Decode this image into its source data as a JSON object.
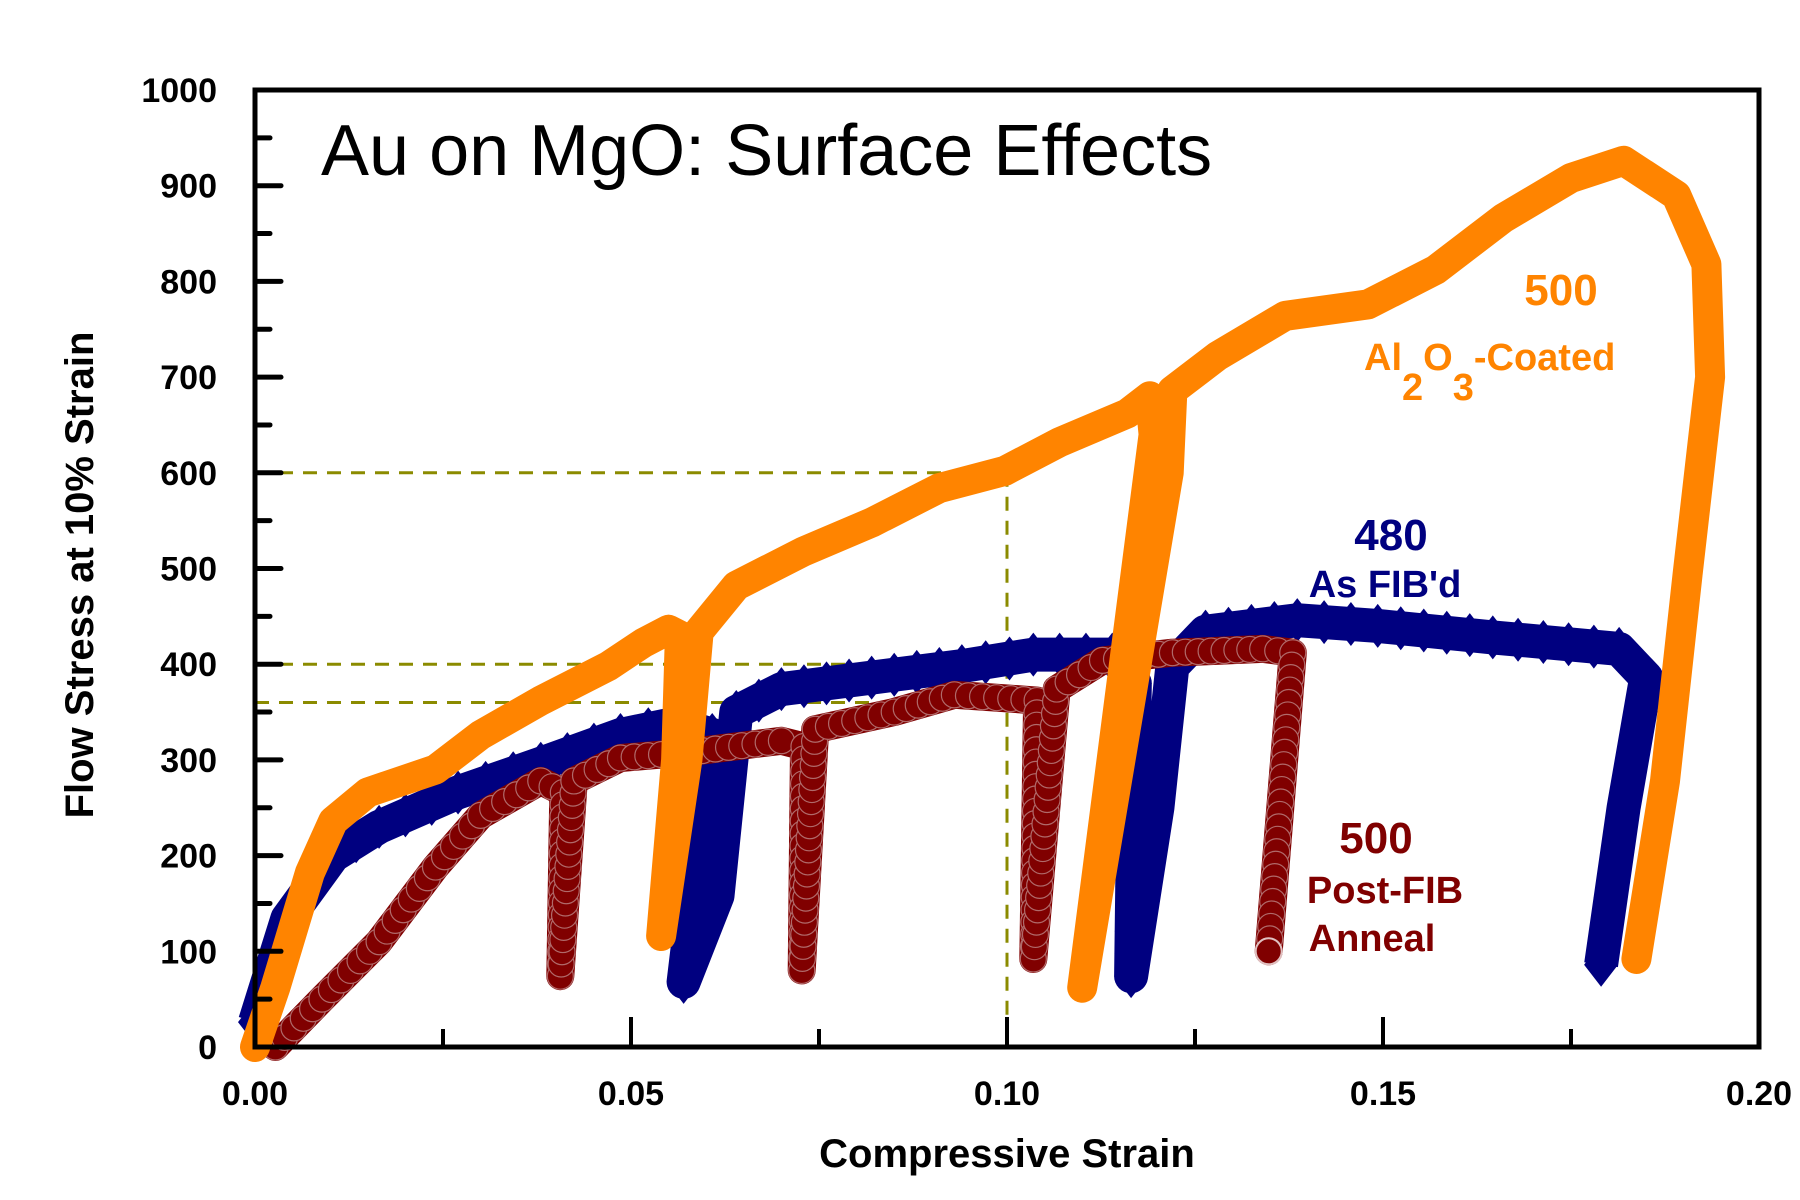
{
  "chart_data": {
    "type": "line",
    "title": "Au on MgO: Surface Effects",
    "xlabel": "Compressive Strain",
    "ylabel": "Flow Stress at 10% Strain",
    "xlim": [
      0.0,
      0.2
    ],
    "ylim": [
      0,
      1000
    ],
    "x_ticks": [
      "0.00",
      "0.05",
      "0.10",
      "0.15",
      "0.20"
    ],
    "x_tick_values": [
      0.0,
      0.05,
      0.1,
      0.15,
      0.2
    ],
    "x_minor_step": 0.025,
    "y_ticks": [
      "0",
      "100",
      "200",
      "300",
      "400",
      "500",
      "600",
      "700",
      "800",
      "900",
      "1000"
    ],
    "y_tick_values": [
      0,
      100,
      200,
      300,
      400,
      500,
      600,
      700,
      800,
      900,
      1000
    ],
    "y_minor_step": 50,
    "grid": false,
    "legend": "none",
    "reference_lines": {
      "color": "#8b8b00",
      "x_at": 0.1,
      "y_values": [
        600,
        400,
        360
      ]
    },
    "series": [
      {
        "name": "Al2O3-Coated",
        "color": "#ff8400",
        "marker": "circle",
        "annotation": {
          "value": "500",
          "line1": "Al",
          "sub1": "2",
          "mid": "O",
          "sub2": "3",
          "tail": "-Coated",
          "position": "upper-right"
        },
        "x": [
          0.0,
          0.0027,
          0.0073,
          0.0104,
          0.015,
          0.024,
          0.03,
          0.038,
          0.047,
          0.0516,
          0.055,
          0.0565,
          0.056,
          0.054,
          0.0575,
          0.059,
          0.064,
          0.073,
          0.082,
          0.091,
          0.0997,
          0.107,
          0.116,
          0.119,
          0.1195,
          0.11,
          0.1215,
          0.122,
          0.128,
          0.137,
          0.148,
          0.157,
          0.166,
          0.175,
          0.182,
          0.189,
          0.193,
          0.1935,
          0.1905,
          0.1875,
          0.1837
        ],
        "y": [
          0,
          62,
          182,
          236,
          266,
          290,
          326,
          362,
          398,
          422,
          436,
          430,
          300,
          116,
          300,
          434,
          482,
          518,
          548,
          584,
          602,
          632,
          662,
          680,
          640,
          62,
          600,
          686,
          722,
          764,
          776,
          812,
          866,
          908,
          926,
          890,
          818,
          700,
          494,
          278,
          92
        ]
      },
      {
        "name": "As FIB'd",
        "color": "#000080",
        "marker": "diamond",
        "annotation": {
          "value": "480",
          "label": "As FIB'd",
          "position": "center-right"
        },
        "x": [
          0.0,
          0.0043,
          0.0104,
          0.0165,
          0.027,
          0.038,
          0.0486,
          0.056,
          0.0608,
          0.059,
          0.057,
          0.0615,
          0.064,
          0.07,
          0.082,
          0.094,
          0.1035,
          0.114,
          0.117,
          0.1165,
          0.12,
          0.122,
          0.1264,
          0.1386,
          0.1493,
          0.1646,
          0.1814,
          0.185,
          0.182,
          0.179
        ],
        "y": [
          26,
          134,
          200,
          230,
          266,
          296,
          326,
          338,
          326,
          200,
          68,
          158,
          350,
          374,
          386,
          398,
          410,
          410,
          380,
          74,
          250,
          398,
          434,
          446,
          440,
          428,
          416,
          386,
          250,
          86
        ]
      },
      {
        "name": "Post-FIB Anneal",
        "color": "#800000",
        "marker": "sphere",
        "annotation": {
          "value": "500",
          "line1": "Post-FIB",
          "line2": "Anneal",
          "position": "lower-right"
        },
        "x": [
          0.0027,
          0.0089,
          0.0165,
          0.024,
          0.03,
          0.038,
          0.041,
          0.0406,
          0.0424,
          0.0486,
          0.0577,
          0.07,
          0.073,
          0.0727,
          0.0745,
          0.085,
          0.093,
          0.1005,
          0.104,
          0.1035,
          0.1066,
          0.1127,
          0.122,
          0.134,
          0.138,
          0.1348
        ],
        "y": [
          0,
          50,
          110,
          188,
          242,
          278,
          266,
          74,
          278,
          302,
          308,
          320,
          314,
          80,
          332,
          350,
          368,
          364,
          362,
          92,
          374,
          404,
          412,
          416,
          412,
          100
        ]
      }
    ]
  }
}
